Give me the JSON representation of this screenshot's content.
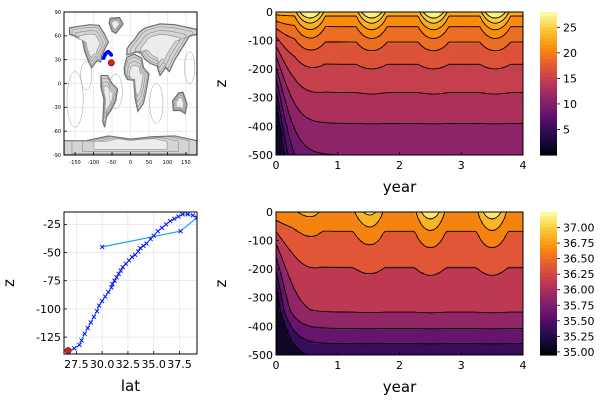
{
  "figure": {
    "background": "#ffffff"
  },
  "chart_data": [
    {
      "id": "map",
      "type": "line",
      "xlim": [
        -180,
        180
      ],
      "ylim": [
        -90,
        90
      ],
      "xticks": [
        -150,
        -100,
        -50,
        0,
        50,
        100,
        150
      ],
      "yticks": [
        -90,
        -60,
        -30,
        0,
        30,
        60,
        90
      ],
      "grid": true,
      "series": [
        {
          "role": "coastline",
          "color": "#888888"
        },
        {
          "role": "trajectory",
          "color": "#0000ff",
          "x": [
            -73,
            -72,
            -70,
            -69,
            -68,
            -66,
            -64,
            -62,
            -60,
            -58,
            -56,
            -54,
            -52
          ],
          "y": [
            32,
            33,
            35,
            36,
            37,
            38,
            39,
            39.5,
            40,
            39,
            38,
            37,
            36
          ]
        },
        {
          "role": "start-point",
          "color": "#e41a1c",
          "x": [
            -52
          ],
          "y": [
            26
          ]
        }
      ]
    },
    {
      "id": "temperature",
      "type": "heatmap",
      "xlabel": "year",
      "ylabel": "z",
      "xlim": [
        0,
        4
      ],
      "ylim": [
        -500,
        0
      ],
      "xticks": [
        0,
        1,
        2,
        3,
        4
      ],
      "yticks": [
        0,
        -100,
        -200,
        -300,
        -400,
        -500
      ],
      "colorbar": {
        "min": 0,
        "max": 28,
        "ticks": [
          5,
          10,
          15,
          20,
          25
        ]
      },
      "contour_levels": [
        4,
        6,
        8,
        10,
        12,
        14,
        16,
        18,
        20,
        22,
        24,
        26
      ],
      "grid": false
    },
    {
      "id": "profile",
      "type": "line",
      "xlabel": "lat",
      "ylabel": "z",
      "xlim": [
        26.3,
        39.2
      ],
      "ylim": [
        -140,
        -14
      ],
      "xticks": [
        27.5,
        30.0,
        32.5,
        35.0,
        37.5
      ],
      "xticklabels": [
        "27.5",
        "30.0",
        "32.5",
        "35.0",
        "37.5"
      ],
      "yticks": [
        -25,
        -50,
        -75,
        -100,
        -125
      ],
      "grid": true,
      "series": [
        {
          "role": "path",
          "color": "#009af9",
          "x": [
            26.7,
            27.3,
            27.8,
            28.0,
            28.3,
            28.6,
            28.9,
            29.2,
            29.5,
            29.7,
            30.0,
            30.3,
            30.6,
            30.9,
            31.0,
            31.2,
            31.4,
            31.6,
            31.8,
            32.0,
            32.3,
            32.6,
            32.9,
            33.2,
            33.5,
            33.7,
            34.0,
            34.3,
            34.7,
            35.0,
            35.4,
            35.8,
            36.2,
            36.6,
            37.0,
            37.4,
            37.8,
            38.3,
            38.8,
            39.2,
            37.6,
            30.0
          ],
          "y": [
            -137,
            -135,
            -132,
            -128,
            -122,
            -117,
            -112,
            -107,
            -102,
            -97,
            -93,
            -89,
            -85,
            -81,
            -78,
            -75,
            -72,
            -69,
            -66,
            -63,
            -60,
            -57,
            -54,
            -52,
            -49,
            -46,
            -44,
            -42,
            -38,
            -35,
            -31,
            -28,
            -25,
            -22,
            -20,
            -18,
            -16,
            -16,
            -17,
            -19,
            -31,
            -45
          ]
        },
        {
          "role": "samples",
          "color": "#0000ff",
          "marker": "x"
        },
        {
          "role": "start-point",
          "color": "#e41a1c",
          "x": [
            26.7
          ],
          "y": [
            -137
          ]
        }
      ]
    },
    {
      "id": "salinity",
      "type": "heatmap",
      "xlabel": "year",
      "ylabel": "z",
      "xlim": [
        0,
        4
      ],
      "ylim": [
        -500,
        0
      ],
      "xticks": [
        0,
        1,
        2,
        3,
        4
      ],
      "yticks": [
        0,
        -100,
        -200,
        -300,
        -400,
        -500
      ],
      "colorbar": {
        "min": 34.95,
        "max": 37.25,
        "ticks": [
          35.0,
          35.25,
          35.5,
          35.75,
          36.0,
          36.25,
          36.5,
          36.75,
          37.0
        ],
        "ticklabels": [
          "35.00",
          "35.25",
          "35.50",
          "35.75",
          "36.00",
          "36.25",
          "36.50",
          "36.75",
          "37.00"
        ]
      },
      "contour_levels": [
        35.25,
        35.5,
        35.75,
        36.0,
        36.25,
        36.5,
        36.75,
        37.0
      ],
      "grid": false
    }
  ]
}
